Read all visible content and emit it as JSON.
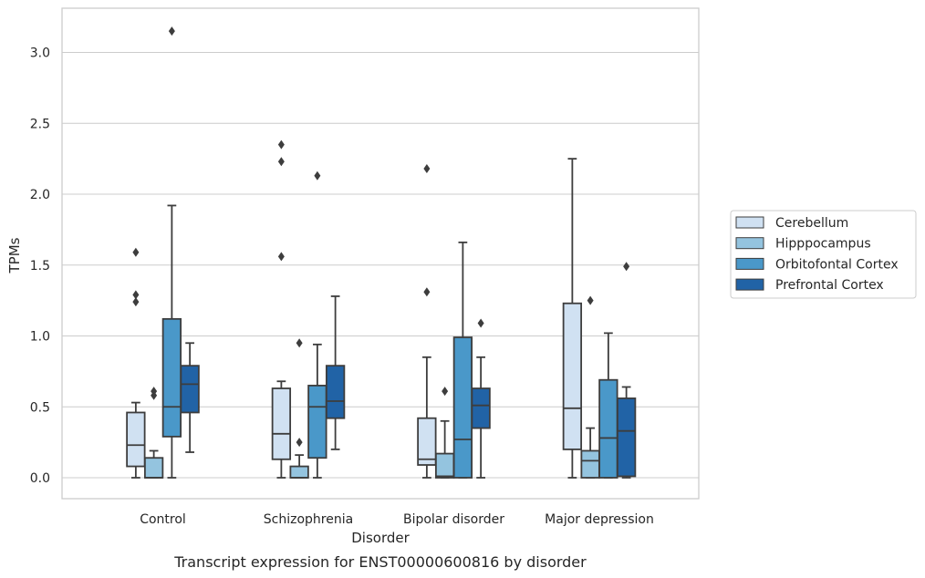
{
  "chart_data": {
    "type": "box",
    "caption": "Transcript expression for ENST00000600816 by disorder",
    "xlabel": "Disorder",
    "ylabel": "TPMs",
    "ylim": [
      -0.15,
      3.3
    ],
    "yticks": [
      "0.0",
      "0.5",
      "1.0",
      "1.5",
      "2.0",
      "2.5",
      "3.0"
    ],
    "grid": true,
    "legend_position": "right",
    "categories": [
      "Control",
      "Schizophrenia",
      "Bipolar disorder",
      "Major depression"
    ],
    "series": [
      {
        "name": "Cerebellum",
        "color": "#d0e1f2",
        "boxes": [
          {
            "whislo": 0.0,
            "q1": 0.08,
            "median": 0.23,
            "q3": 0.46,
            "whishi": 0.53,
            "fliers": [
              1.24,
              1.29,
              1.59
            ]
          },
          {
            "whislo": 0.0,
            "q1": 0.13,
            "median": 0.31,
            "q3": 0.63,
            "whishi": 0.68,
            "fliers": [
              1.56,
              2.23,
              2.35
            ]
          },
          {
            "whislo": 0.0,
            "q1": 0.09,
            "median": 0.13,
            "q3": 0.42,
            "whishi": 0.85,
            "fliers": [
              1.31,
              2.18
            ]
          },
          {
            "whislo": 0.0,
            "q1": 0.2,
            "median": 0.49,
            "q3": 1.23,
            "whishi": 2.25,
            "fliers": []
          }
        ]
      },
      {
        "name": "Hipppocampus",
        "color": "#94c4df",
        "boxes": [
          {
            "whislo": 0.0,
            "q1": 0.0,
            "median": 0.0,
            "q3": 0.14,
            "whishi": 0.19,
            "fliers": [
              0.58,
              0.61
            ]
          },
          {
            "whislo": 0.0,
            "q1": 0.0,
            "median": 0.0,
            "q3": 0.08,
            "whishi": 0.16,
            "fliers": [
              0.25,
              0.95
            ]
          },
          {
            "whislo": 0.0,
            "q1": 0.0,
            "median": 0.01,
            "q3": 0.17,
            "whishi": 0.4,
            "fliers": [
              0.61
            ]
          },
          {
            "whislo": 0.0,
            "q1": 0.0,
            "median": 0.12,
            "q3": 0.19,
            "whishi": 0.35,
            "fliers": [
              1.25
            ]
          }
        ]
      },
      {
        "name": "Orbitofontal Cortex",
        "color": "#4a98c9",
        "boxes": [
          {
            "whislo": 0.0,
            "q1": 0.29,
            "median": 0.5,
            "q3": 1.12,
            "whishi": 1.92,
            "fliers": [
              3.15
            ]
          },
          {
            "whislo": 0.0,
            "q1": 0.14,
            "median": 0.5,
            "q3": 0.65,
            "whishi": 0.94,
            "fliers": [
              2.13
            ]
          },
          {
            "whislo": 0.0,
            "q1": 0.0,
            "median": 0.27,
            "q3": 0.99,
            "whishi": 1.66,
            "fliers": []
          },
          {
            "whislo": 0.0,
            "q1": 0.0,
            "median": 0.28,
            "q3": 0.69,
            "whishi": 1.02,
            "fliers": []
          }
        ]
      },
      {
        "name": "Prefrontal Cortex",
        "color": "#2163a6",
        "boxes": [
          {
            "whislo": 0.18,
            "q1": 0.46,
            "median": 0.66,
            "q3": 0.79,
            "whishi": 0.95,
            "fliers": []
          },
          {
            "whislo": 0.2,
            "q1": 0.42,
            "median": 0.54,
            "q3": 0.79,
            "whishi": 1.28,
            "fliers": []
          },
          {
            "whislo": 0.0,
            "q1": 0.35,
            "median": 0.51,
            "q3": 0.63,
            "whishi": 0.85,
            "fliers": [
              1.09
            ]
          },
          {
            "whislo": 0.0,
            "q1": 0.01,
            "median": 0.33,
            "q3": 0.56,
            "whishi": 0.64,
            "fliers": [
              1.49
            ]
          }
        ]
      }
    ]
  }
}
